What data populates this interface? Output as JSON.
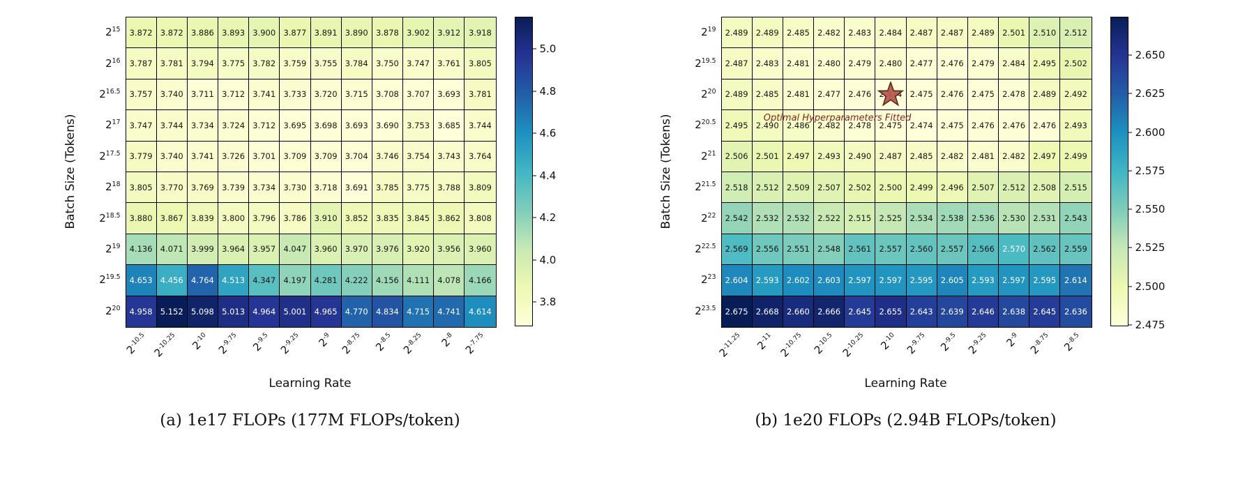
{
  "figure": {
    "background": "#ffffff",
    "colormap": "YlGnBu",
    "cell_border_color": "#000000"
  },
  "chart_data": [
    {
      "type": "heatmap",
      "caption": "(a) 1e17 FLOPs (177M FLOPs/token)",
      "xlabel": "Learning Rate",
      "ylabel": "Batch Size (Tokens)",
      "colormap": "YlGnBu",
      "x_ticks": [
        "2^-10.5",
        "2^-10.25",
        "2^-10",
        "2^-9.75",
        "2^-9.5",
        "2^-9.25",
        "2^-9",
        "2^-8.75",
        "2^-8.5",
        "2^-8.25",
        "2^-8",
        "2^-7.75"
      ],
      "y_ticks": [
        "2^15",
        "2^16",
        "2^16.5",
        "2^17",
        "2^17.5",
        "2^18",
        "2^18.5",
        "2^19",
        "2^19.5",
        "2^20"
      ],
      "values": [
        [
          3.872,
          3.872,
          3.886,
          3.893,
          3.9,
          3.877,
          3.891,
          3.89,
          3.878,
          3.902,
          3.912,
          3.918
        ],
        [
          3.787,
          3.781,
          3.794,
          3.775,
          3.782,
          3.759,
          3.755,
          3.784,
          3.75,
          3.747,
          3.761,
          3.805
        ],
        [
          3.757,
          3.74,
          3.711,
          3.712,
          3.741,
          3.733,
          3.72,
          3.715,
          3.708,
          3.707,
          3.693,
          3.781
        ],
        [
          3.747,
          3.744,
          3.734,
          3.724,
          3.712,
          3.695,
          3.698,
          3.693,
          3.69,
          3.753,
          3.685,
          3.744
        ],
        [
          3.779,
          3.74,
          3.741,
          3.726,
          3.701,
          3.709,
          3.709,
          3.704,
          3.746,
          3.754,
          3.743,
          3.764
        ],
        [
          3.805,
          3.77,
          3.769,
          3.739,
          3.734,
          3.73,
          3.718,
          3.691,
          3.785,
          3.775,
          3.788,
          3.809
        ],
        [
          3.88,
          3.867,
          3.839,
          3.8,
          3.796,
          3.786,
          3.91,
          3.852,
          3.835,
          3.845,
          3.862,
          3.808
        ],
        [
          4.136,
          4.071,
          3.999,
          3.964,
          3.957,
          4.047,
          3.96,
          3.97,
          3.976,
          3.92,
          3.956,
          3.96
        ],
        [
          4.653,
          4.456,
          4.764,
          4.513,
          4.347,
          4.197,
          4.281,
          4.222,
          4.156,
          4.111,
          4.078,
          4.166
        ],
        [
          4.958,
          5.152,
          5.098,
          5.013,
          4.964,
          5.001,
          4.965,
          4.77,
          4.834,
          4.715,
          4.741,
          4.614
        ]
      ],
      "colorbar_ticks": [
        "3.8",
        "4.0",
        "4.2",
        "4.4",
        "4.6",
        "4.8",
        "5.0"
      ]
    },
    {
      "type": "heatmap",
      "caption": "(b) 1e20 FLOPs (2.94B FLOPs/token)",
      "xlabel": "Learning Rate",
      "ylabel": "Batch Size (Tokens)",
      "colormap": "YlGnBu",
      "x_ticks": [
        "2^-11.25",
        "2^-11",
        "2^-10.75",
        "2^-10.5",
        "2^-10.25",
        "2^-10",
        "2^-9.75",
        "2^-9.5",
        "2^-9.25",
        "2^-9",
        "2^-8.75",
        "2^-8.5"
      ],
      "y_ticks": [
        "2^19",
        "2^19.5",
        "2^20",
        "2^20.5",
        "2^21",
        "2^21.5",
        "2^22",
        "2^22.5",
        "2^23",
        "2^23.5"
      ],
      "values": [
        [
          2.489,
          2.489,
          2.485,
          2.482,
          2.483,
          2.484,
          2.487,
          2.487,
          2.489,
          2.501,
          2.51,
          2.512
        ],
        [
          2.487,
          2.483,
          2.481,
          2.48,
          2.479,
          2.48,
          2.477,
          2.476,
          2.479,
          2.484,
          2.495,
          2.502
        ],
        [
          2.489,
          2.485,
          2.481,
          2.477,
          2.476,
          2.474,
          2.475,
          2.476,
          2.475,
          2.478,
          2.489,
          2.492
        ],
        [
          2.495,
          2.49,
          2.486,
          2.482,
          2.478,
          2.475,
          2.474,
          2.475,
          2.476,
          2.476,
          2.476,
          2.493
        ],
        [
          2.506,
          2.501,
          2.497,
          2.493,
          2.49,
          2.487,
          2.485,
          2.482,
          2.481,
          2.482,
          2.497,
          2.499
        ],
        [
          2.518,
          2.512,
          2.509,
          2.507,
          2.502,
          2.5,
          2.499,
          2.496,
          2.507,
          2.512,
          2.508,
          2.515
        ],
        [
          2.542,
          2.532,
          2.532,
          2.522,
          2.515,
          2.525,
          2.534,
          2.538,
          2.536,
          2.53,
          2.531,
          2.543
        ],
        [
          2.569,
          2.556,
          2.551,
          2.548,
          2.561,
          2.557,
          2.56,
          2.557,
          2.566,
          2.57,
          2.562,
          2.559
        ],
        [
          2.604,
          2.593,
          2.602,
          2.603,
          2.597,
          2.597,
          2.595,
          2.605,
          2.593,
          2.597,
          2.595,
          2.614
        ],
        [
          2.675,
          2.668,
          2.66,
          2.666,
          2.645,
          2.655,
          2.643,
          2.639,
          2.646,
          2.638,
          2.645,
          2.636
        ]
      ],
      "colorbar_ticks": [
        "2.475",
        "2.500",
        "2.525",
        "2.550",
        "2.575",
        "2.600",
        "2.625",
        "2.650"
      ],
      "annotation": {
        "text": "Optimal Hyperparameters Fitted",
        "color": "#8b1f1f",
        "marker": "star",
        "marker_color": "#b85c4e",
        "marker_edge_color": "#53201a",
        "row": 2,
        "col": 5
      }
    }
  ]
}
